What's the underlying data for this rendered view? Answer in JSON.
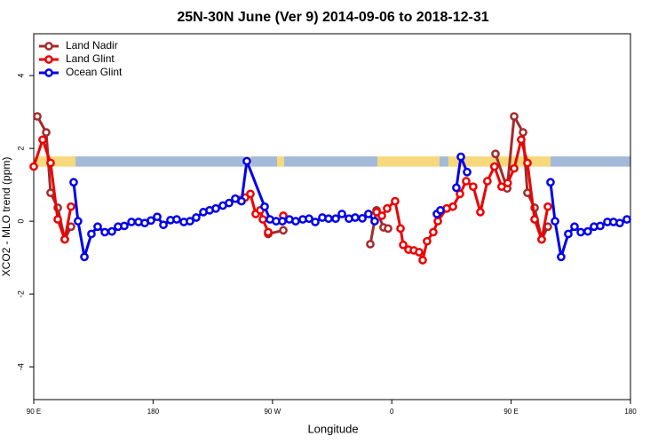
{
  "chart_data": {
    "type": "line",
    "title": "25N-30N June (Ver 9)   2014-09-06 to 2018-12-31",
    "x_label": "Longitude",
    "y_label": "XCO2 - MLO trend (ppm)",
    "xlim": [
      90,
      540
    ],
    "ylim": [
      -4.9,
      5.15
    ],
    "xticks": [
      {
        "value": 90,
        "label": "90 E"
      },
      180,
      {
        "value": 270,
        "label": "90 W"
      },
      {
        "value": 360,
        "label": "0"
      },
      {
        "value": 450,
        "label": "90 E"
      },
      {
        "value": 540,
        "label": "180"
      }
    ],
    "yticks": [
      -4,
      -2,
      0,
      2,
      4
    ],
    "legend": "top-left",
    "surface_band": {
      "ylim": [
        1.5,
        1.78
      ],
      "segments": [
        {
          "from": 90,
          "to": 121.5,
          "color": "#f7d87c"
        },
        {
          "from": 121.5,
          "to": 248.7,
          "color": "#a3b9d9"
        },
        {
          "from": 248.7,
          "to": 254,
          "color": "#f7d87c"
        },
        {
          "from": 254,
          "to": 273.5,
          "color": "#a3b9d9"
        },
        {
          "from": 273.5,
          "to": 278.8,
          "color": "#f7d87c"
        },
        {
          "from": 278.8,
          "to": 349.2,
          "color": "#a3b9d9"
        },
        {
          "from": 349.2,
          "to": 396,
          "color": "#f7d87c"
        },
        {
          "from": 396,
          "to": 402.7,
          "color": "#a3b9d9"
        },
        {
          "from": 402.7,
          "to": 479.7,
          "color": "#f7d87c"
        },
        {
          "from": 479.7,
          "to": 540,
          "color": "#a3b9d9"
        }
      ]
    },
    "series": [
      {
        "name": "Land Nadir",
        "color": "#a52a2a",
        "x": [
          92.7,
          99.4,
          102.7,
          108.1,
          113.4,
          118.1,
          null,
          266.8,
          278.2,
          null,
          343.8,
          348.5,
          353.8,
          357.2,
          null,
          438.2,
          447,
          452.3,
          459.0,
          462.3,
          467.7,
          473.0,
          477.7
        ],
        "values": [
          2.88,
          2.44,
          0.78,
          0.37,
          -0.5,
          -0.15,
          null,
          -0.35,
          -0.25,
          null,
          -0.63,
          0.3,
          -0.17,
          -0.2,
          null,
          1.85,
          0.9,
          2.88,
          2.44,
          0.78,
          0.37,
          -0.5,
          -0.15
        ]
      },
      {
        "name": "Land Glint",
        "color": "#ee0000",
        "x": [
          90,
          96.7,
          102.7,
          108.1,
          113.4,
          118.1,
          null,
          245.4,
          249.4,
          253.4,
          257.4,
          260.8,
          262.8,
          266.8,
          null,
          278.2,
          null,
          348.5,
          352.5,
          356.5,
          362.5,
          366.6,
          368.6,
          372.6,
          376.6,
          380.6,
          383.3,
          386.6,
          391.3,
          394.7,
          401.4,
          406.1,
          411.4,
          416.1,
          421.4,
          426.8,
          432.1,
          437.4,
          442.8,
          447.4,
          452.3,
          457.6,
          462.3,
          467.7,
          473.0,
          477.7
        ],
        "values": [
          1.5,
          2.24,
          1.6,
          0.05,
          -0.5,
          0.4,
          null,
          0.58,
          0.65,
          0.75,
          0.2,
          0.3,
          0.05,
          -0.3,
          null,
          0.15,
          null,
          0.25,
          0.15,
          0.35,
          0.55,
          -0.2,
          -0.65,
          -0.78,
          -0.8,
          -0.85,
          -1.07,
          -0.55,
          -0.3,
          0.0,
          0.35,
          0.4,
          0.75,
          1.1,
          0.95,
          0.25,
          1.1,
          1.5,
          0.95,
          1.05,
          1.45,
          2.24,
          1.6,
          0.05,
          -0.5,
          0.4
        ]
      },
      {
        "name": "Ocean Glint",
        "color": "#0000ee",
        "x": [
          120.1,
          123.4,
          128.2,
          133.5,
          138.2,
          143.6,
          148.9,
          153.6,
          158.3,
          163.7,
          169.0,
          173.7,
          178.4,
          183.1,
          187.8,
          193.1,
          197.8,
          203.2,
          207.8,
          212.5,
          217.9,
          222.6,
          227.3,
          232.6,
          237.3,
          242.0,
          246.7,
          250.7,
          264.1,
          268.1,
          272.8,
          277.5,
          282.8,
          287.5,
          292.9,
          297.6,
          302.3,
          307.6,
          312.3,
          317.7,
          322.4,
          327.7,
          332.4,
          337.8,
          342.4,
          347.1,
          null,
          394.0,
          396.7,
          null,
          408.7,
          412.1,
          416.8,
          null,
          479.7,
          483.1,
          487.7,
          493.1,
          497.8,
          502.5,
          507.8,
          512.5,
          517.2,
          522.6,
          527.2,
          531.9,
          537.3
        ],
        "values": [
          1.07,
          0.0,
          -0.98,
          -0.35,
          -0.15,
          -0.3,
          -0.28,
          -0.15,
          -0.13,
          -0.02,
          -0.02,
          -0.05,
          0.02,
          0.12,
          -0.1,
          0.03,
          0.05,
          -0.02,
          0.0,
          0.1,
          0.25,
          0.3,
          0.35,
          0.43,
          0.5,
          0.62,
          0.55,
          1.65,
          0.4,
          0.05,
          0.0,
          0.0,
          0.05,
          0.0,
          0.05,
          0.07,
          -0.02,
          0.1,
          0.07,
          0.07,
          0.2,
          0.07,
          0.1,
          0.08,
          0.2,
          0.0,
          null,
          0.2,
          0.3,
          null,
          0.92,
          1.77,
          1.35,
          null,
          1.07,
          0.0,
          -0.98,
          -0.35,
          -0.15,
          -0.3,
          -0.28,
          -0.15,
          -0.13,
          -0.02,
          -0.02,
          -0.05,
          0.05
        ]
      }
    ]
  }
}
